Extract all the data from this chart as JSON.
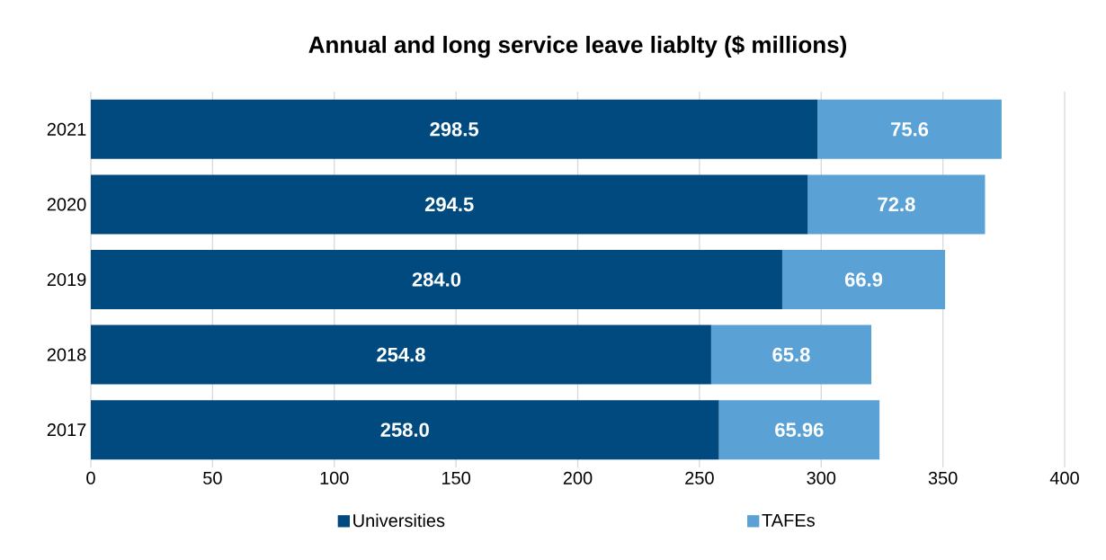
{
  "chart_data": {
    "type": "bar",
    "orientation": "horizontal",
    "stacked": true,
    "title": "Annual and long service leave liablty ($ millions)",
    "categories": [
      "2021",
      "2020",
      "2019",
      "2018",
      "2017"
    ],
    "series": [
      {
        "name": "Universities",
        "color": "#004a80",
        "values": [
          298.5,
          294.5,
          284.0,
          254.8,
          258.0
        ],
        "value_labels": [
          "298.5",
          "294.5",
          "284.0",
          "254.8",
          "258.0"
        ]
      },
      {
        "name": "TAFEs",
        "color": "#5aa2d5",
        "values": [
          75.6,
          72.8,
          66.9,
          65.8,
          65.96
        ],
        "value_labels": [
          "75.6",
          "72.8",
          "66.9",
          "65.8",
          "65.96"
        ]
      }
    ],
    "xlim": [
      0,
      400
    ],
    "xticks": [
      0,
      50,
      100,
      150,
      200,
      250,
      300,
      350,
      400
    ],
    "grid": "x",
    "legend": "bottom"
  }
}
